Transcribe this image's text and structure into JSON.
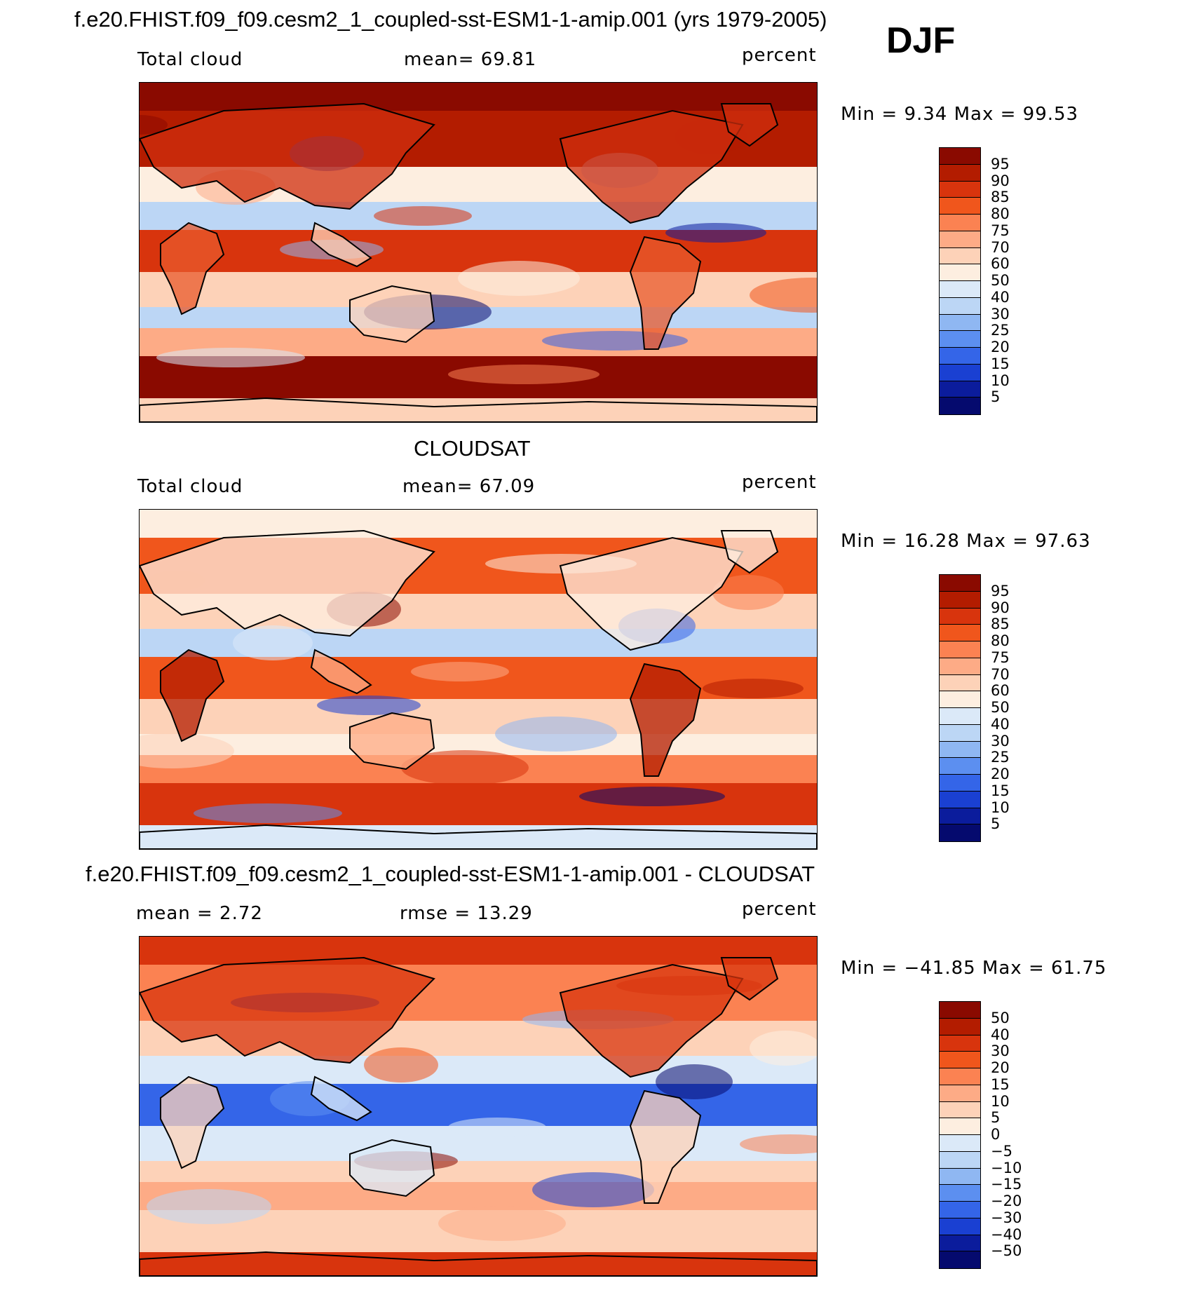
{
  "header": {
    "title": "f.e20.FHIST.f09_f09.cesm2_1_coupled-sst-ESM1-1-amip.001 (yrs 1979-2005)",
    "season": "DJF"
  },
  "panels": [
    {
      "id": "model",
      "heading": "",
      "left_label": "Total cloud",
      "mid_label": "mean=   69.81",
      "units": "percent",
      "min_max": "Min  =    9.34  Max  =    99.53",
      "colorbar": {
        "labels": [
          "95",
          "90",
          "85",
          "80",
          "75",
          "70",
          "60",
          "50",
          "40",
          "30",
          "25",
          "20",
          "15",
          "10",
          "5"
        ],
        "colors": [
          "#8a0a00",
          "#b31c00",
          "#d8340d",
          "#f0561c",
          "#fb8252",
          "#fdab86",
          "#fdd2b8",
          "#fdeee0",
          "#dbe9f8",
          "#bcd6f5",
          "#8fb7f2",
          "#5c8ff0",
          "#3465e8",
          "#1a40d2",
          "#0b1c9c",
          "#050a6e"
        ]
      },
      "continent_colors": {
        "N": "#cf2e0e",
        "S": "#e85a2c",
        "E": "#fdd2b8"
      },
      "bands": [
        {
          "label": "arctic",
          "color": "#8a0a00"
        },
        {
          "label": "north-midlat",
          "color": "#b31c00"
        },
        {
          "label": "north-subtrop",
          "color": "#fdeee0"
        },
        {
          "label": "subtrop-dry",
          "color": "#bcd6f5"
        },
        {
          "label": "itcz",
          "color": "#d8340d"
        },
        {
          "label": "south-subtrop",
          "color": "#fdd2b8"
        },
        {
          "label": "south-dry",
          "color": "#bcd6f5"
        },
        {
          "label": "south-midlat",
          "color": "#fdab86"
        },
        {
          "label": "southern-ocean",
          "color": "#8a0a00"
        },
        {
          "label": "antarctic",
          "color": "#fdd2b8"
        }
      ]
    },
    {
      "id": "obs",
      "heading": "CLOUDSAT",
      "left_label": "Total cloud",
      "mid_label": "mean=   67.09",
      "units": "percent",
      "min_max": "Min  =   16.28  Max  =    97.63",
      "colorbar": {
        "labels": [
          "95",
          "90",
          "85",
          "80",
          "75",
          "70",
          "60",
          "50",
          "40",
          "30",
          "25",
          "20",
          "15",
          "10",
          "5"
        ],
        "colors": [
          "#8a0a00",
          "#b31c00",
          "#d8340d",
          "#f0561c",
          "#fb8252",
          "#fdab86",
          "#fdd2b8",
          "#fdeee0",
          "#dbe9f8",
          "#bcd6f5",
          "#8fb7f2",
          "#5c8ff0",
          "#3465e8",
          "#1a40d2",
          "#0b1c9c",
          "#050a6e"
        ]
      },
      "continent_colors": {
        "N": "#fdeee0",
        "S": "#b31c00",
        "E": "#fdab86"
      },
      "bands": [
        {
          "label": "arctic",
          "color": "#fdeee0"
        },
        {
          "label": "north-midlat",
          "color": "#f0561c"
        },
        {
          "label": "north-subtrop",
          "color": "#fdd2b8"
        },
        {
          "label": "subtrop-dry",
          "color": "#bcd6f5"
        },
        {
          "label": "itcz",
          "color": "#f0561c"
        },
        {
          "label": "south-subtrop",
          "color": "#fdd2b8"
        },
        {
          "label": "south-dry",
          "color": "#fdeee0"
        },
        {
          "label": "south-midlat",
          "color": "#fb8252"
        },
        {
          "label": "southern-ocean",
          "color": "#d8340d"
        },
        {
          "label": "antarctic",
          "color": "#dbe9f8"
        }
      ]
    },
    {
      "id": "diff",
      "heading": "f.e20.FHIST.f09_f09.cesm2_1_coupled-sst-ESM1-1-amip.001 - CLOUDSAT",
      "left_label": "mean =     2.72",
      "mid_label": "rmse  =    13.29",
      "units": "percent",
      "min_max": "Min  = −41.85  Max  =    61.75",
      "colorbar": {
        "labels": [
          "50",
          "40",
          "30",
          "20",
          "15",
          "10",
          "5",
          "0",
          "−5",
          "−10",
          "−15",
          "−20",
          "−30",
          "−40",
          "−50"
        ],
        "colors": [
          "#8a0a00",
          "#b31c00",
          "#d8340d",
          "#f0561c",
          "#fb8252",
          "#fdab86",
          "#fdd2b8",
          "#fdeee0",
          "#dbe9f8",
          "#bcd6f5",
          "#8fb7f2",
          "#5c8ff0",
          "#3465e8",
          "#1a40d2",
          "#0b1c9c",
          "#050a6e"
        ]
      },
      "continent_colors": {
        "N": "#d8340d",
        "S": "#fdd2b8",
        "E": "#dbe9f8"
      },
      "bands": [
        {
          "label": "arctic",
          "color": "#d8340d"
        },
        {
          "label": "north-midlat",
          "color": "#fb8252"
        },
        {
          "label": "north-subtrop",
          "color": "#fdd2b8"
        },
        {
          "label": "subtrop-dry",
          "color": "#dbe9f8"
        },
        {
          "label": "itcz",
          "color": "#3465e8"
        },
        {
          "label": "south-subtrop",
          "color": "#dbe9f8"
        },
        {
          "label": "south-dry",
          "color": "#fdd2b8"
        },
        {
          "label": "south-midlat",
          "color": "#fdab86"
        },
        {
          "label": "southern-ocean",
          "color": "#fdd2b8"
        },
        {
          "label": "antarctic",
          "color": "#d8340d"
        }
      ]
    }
  ]
}
